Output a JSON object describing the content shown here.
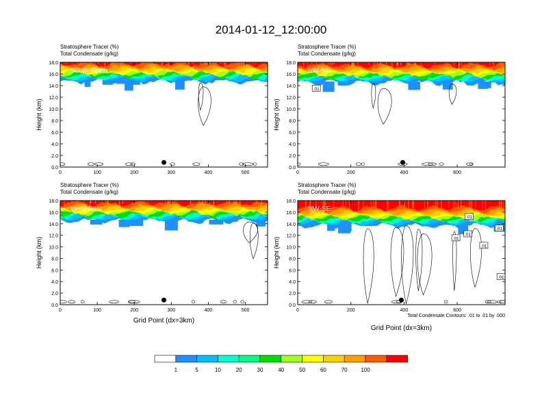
{
  "title": "2014-01-12_12:00:00",
  "footnote": "Total Condensate Contours: .01 to .01 by .000",
  "colors": {
    "shading": [
      "#ffffff",
      "#1e90ff",
      "#00bfff",
      "#00ffd0",
      "#00ff80",
      "#00e000",
      "#a0ff20",
      "#ffff00",
      "#ffd000",
      "#ffa000",
      "#ff5a00",
      "#ff0000"
    ],
    "marker": "#000000",
    "contour": "#000000"
  },
  "colorbar": {
    "labels": [
      "1",
      "5",
      "10",
      "20",
      "30",
      "40",
      "50",
      "60",
      "70",
      "100"
    ]
  },
  "chart_data": [
    {
      "type": "heatmap",
      "label": "South-North",
      "subtitle_line1": "Stratosphere Tracer   (%)",
      "subtitle_line2": "Total Condensate   (g/kg)",
      "ylabel": "Height (km)",
      "xlabel": "",
      "xlim": [
        0,
        560
      ],
      "ylim": [
        0,
        18
      ],
      "xticks": [
        "0",
        "100",
        "200",
        "300",
        "400",
        "500"
      ],
      "yticks": [
        "0.0",
        "2.0",
        "4.0",
        "6.0",
        "8.0",
        "10.0",
        "12.0",
        "14.0",
        "16.0",
        "18.0"
      ],
      "marker_x": 280,
      "tropopause_height_km": 15.5,
      "contour_labels": []
    },
    {
      "type": "heatmap",
      "label": "SW-NE",
      "subtitle_line1": "Stratosphere Tracer   (%)",
      "subtitle_line2": "Total Condensate   (g/kg)",
      "ylabel": "Height (km)",
      "xlabel": "",
      "xlim": [
        0,
        780
      ],
      "ylim": [
        0,
        18
      ],
      "xticks": [
        "0",
        "200",
        "400",
        "600"
      ],
      "yticks": [
        "0.0",
        "2.0",
        "4.0",
        "6.0",
        "8.0",
        "10.0",
        "12.0",
        "14.0",
        "16.0",
        "18.0"
      ],
      "marker_x": 395,
      "tropopause_height_km": 15.3,
      "contour_labels": [
        ".01"
      ]
    },
    {
      "type": "heatmap",
      "label": "West-East",
      "subtitle_line1": "Stratosphere Tracer   (%)",
      "subtitle_line2": "Total Condensate   (g/kg)",
      "ylabel": "Height (km)",
      "xlabel": "Grid Point (dx=3km)",
      "xlim": [
        0,
        560
      ],
      "ylim": [
        0,
        18
      ],
      "xticks": [
        "0",
        "100",
        "200",
        "300",
        "400",
        "500"
      ],
      "yticks": [
        "0.0",
        "2.0",
        "4.0",
        "6.0",
        "8.0",
        "10.0",
        "12.0",
        "14.0",
        "16.0",
        "18.0"
      ],
      "marker_x": 280,
      "tropopause_height_km": 15.3,
      "contour_labels": []
    },
    {
      "type": "heatmap",
      "label": "NW-SE",
      "subtitle_line1": "Stratosphere Tracer   (%)",
      "subtitle_line2": "Total Condensate   (g/kg)",
      "ylabel": "Height (km)",
      "xlabel": "Grid Point (dx=3km)",
      "xlim": [
        0,
        780
      ],
      "ylim": [
        0,
        18
      ],
      "xticks": [
        "0",
        "200",
        "400",
        "600"
      ],
      "yticks": [
        "0.0",
        "2.0",
        "4.0",
        "6.0",
        "8.0",
        "10.0",
        "12.0",
        "14.0",
        "16.0",
        "18.0"
      ],
      "marker_x": 390,
      "tropopause_height_km": 14.5,
      "contour_labels": [
        ".01",
        ".01",
        ".01",
        ".01",
        ".01",
        ".01"
      ]
    }
  ]
}
